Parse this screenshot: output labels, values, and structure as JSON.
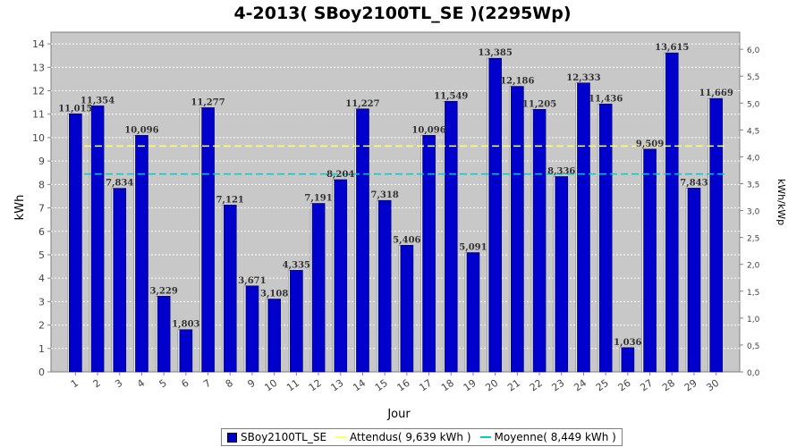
{
  "chart_data": {
    "type": "bar",
    "title": "4-2013( SBoy2100TL_SE )(2295Wp)",
    "xlabel": "Jour",
    "ylabel": "kWh",
    "y2label": "kWh/kWp",
    "ylim": [
      0,
      14.5
    ],
    "y2lim": [
      0,
      6.318
    ],
    "grid": true,
    "legend_position": "bottom",
    "categories": [
      "1",
      "2",
      "3",
      "4",
      "5",
      "6",
      "7",
      "8",
      "9",
      "10",
      "11",
      "12",
      "13",
      "14",
      "15",
      "16",
      "17",
      "18",
      "19",
      "20",
      "21",
      "22",
      "23",
      "24",
      "25",
      "26",
      "27",
      "28",
      "29",
      "30"
    ],
    "series": [
      {
        "name": "SBoy2100TL_SE",
        "values": [
          11.015,
          11.354,
          7.834,
          10.096,
          3.229,
          1.803,
          11.277,
          7.121,
          3.671,
          3.108,
          4.335,
          7.191,
          8.204,
          11.227,
          7.318,
          5.406,
          10.096,
          11.549,
          5.091,
          13.385,
          12.186,
          11.205,
          8.336,
          12.333,
          11.436,
          1.036,
          9.509,
          13.615,
          7.843,
          11.669
        ],
        "labels": [
          "11,015",
          "11,354",
          "7,834",
          "10,096",
          "3,229",
          "1,803",
          "11,277",
          "7,121",
          "3,671",
          "3,108",
          "4,335",
          "7,191",
          "8,204",
          "11,227",
          "7,318",
          "5,406",
          "10,096",
          "11,549",
          "5,091",
          "13,385",
          "12,186",
          "11,205",
          "8,336",
          "12,333",
          "11,436",
          "1,036",
          "9,509",
          "13,615",
          "7,843",
          "11,669"
        ],
        "color": "#0000cc"
      }
    ],
    "lines": [
      {
        "name": "Attendus( 9,639 kWh )",
        "value": 9.639,
        "color": "#ffff66"
      },
      {
        "name": "Moyenne( 8,449 kWh )",
        "value": 8.449,
        "color": "#00cccc"
      }
    ],
    "y_ticks": [
      "0",
      "1",
      "2",
      "3",
      "4",
      "5",
      "6",
      "7",
      "8",
      "9",
      "10",
      "11",
      "12",
      "13",
      "14"
    ],
    "y2_ticks": [
      "0,0",
      "0,5",
      "1,0",
      "1,5",
      "2,0",
      "2,5",
      "3,0",
      "3,5",
      "4,0",
      "4,5",
      "5,0",
      "5,5",
      "6,0"
    ]
  },
  "colors": {
    "plot_background": "#c8c8c8",
    "bar": "#0000cc",
    "gridline": "#ffffff"
  }
}
